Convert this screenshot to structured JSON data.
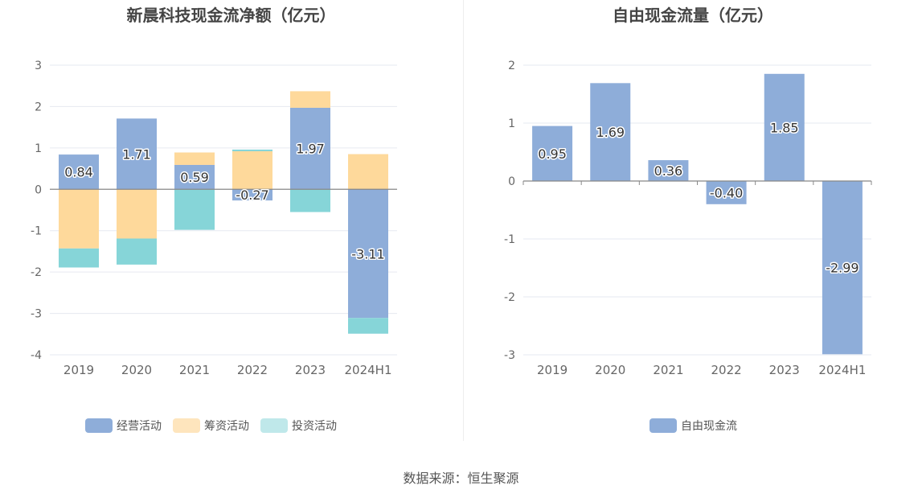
{
  "chart_data": [
    {
      "type": "bar",
      "stacked": true,
      "title": "新晨科技现金流净额（亿元）",
      "categories": [
        "2019",
        "2020",
        "2021",
        "2022",
        "2023",
        "2024H1"
      ],
      "series": [
        {
          "name": "经营活动",
          "color": "#8eadd9",
          "values": [
            0.84,
            1.71,
            0.59,
            -0.27,
            1.97,
            -3.11
          ]
        },
        {
          "name": "筹资活动",
          "color": "#fed99b",
          "values": [
            -1.43,
            -1.19,
            0.3,
            0.92,
            0.4,
            0.85
          ]
        },
        {
          "name": "投资活动",
          "color": "#86d5d8",
          "values": [
            -0.46,
            -0.63,
            -0.98,
            0.04,
            -0.55,
            -0.38
          ]
        }
      ],
      "data_labels": [
        "0.84",
        "1.71",
        "0.59",
        "-0.27",
        "1.97",
        "-3.11"
      ],
      "ylim": [
        -4,
        3
      ],
      "yticks": [
        3,
        2,
        1,
        0,
        -1,
        -2,
        -3,
        -4
      ],
      "legend_position": "bottom",
      "grid": true
    },
    {
      "type": "bar",
      "title": "自由现金流量（亿元）",
      "categories": [
        "2019",
        "2020",
        "2021",
        "2022",
        "2023",
        "2024H1"
      ],
      "series": [
        {
          "name": "自由现金流",
          "color": "#8eadd9",
          "values": [
            0.95,
            1.69,
            0.36,
            -0.4,
            1.85,
            -2.99
          ]
        }
      ],
      "data_labels": [
        "0.95",
        "1.69",
        "0.36",
        "-0.40",
        "1.85",
        "-2.99"
      ],
      "ylim": [
        -3,
        2
      ],
      "yticks": [
        2,
        1,
        0,
        -1,
        -2,
        -3
      ],
      "legend_position": "bottom",
      "grid": true
    }
  ],
  "source_text": "数据来源：恒生聚源"
}
